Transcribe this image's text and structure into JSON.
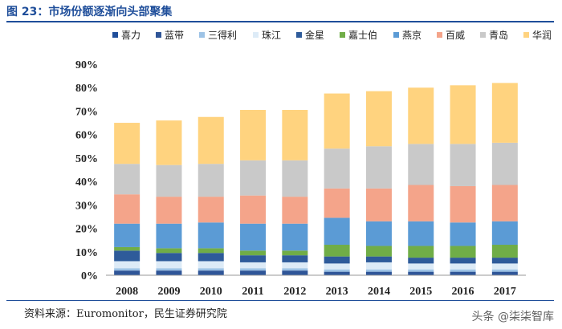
{
  "figure": {
    "title": "图 23：市场份额逐渐向头部聚集",
    "source": "资料来源：Euromonitor，民生证券研究院",
    "watermark": "头条 @柒柒智库"
  },
  "chart_data": {
    "type": "bar",
    "stacked": true,
    "title": "图 23：市场份额逐渐向头部聚集",
    "xlabel": "",
    "ylabel": "",
    "ylim": [
      0,
      90
    ],
    "yticks": [
      0,
      10,
      20,
      30,
      40,
      50,
      60,
      70,
      80,
      90
    ],
    "ytick_labels": [
      "0%",
      "10%",
      "20%",
      "30%",
      "40%",
      "50%",
      "60%",
      "70%",
      "80%",
      "90%"
    ],
    "grid": false,
    "legend_position": "top",
    "categories": [
      "2008",
      "2009",
      "2010",
      "2011",
      "2012",
      "2013",
      "2014",
      "2015",
      "2016",
      "2017"
    ],
    "series": [
      {
        "name": "喜力",
        "color": "#1f4e9a",
        "values": [
          0.5,
          0.5,
          0.5,
          0.5,
          0.5,
          0.5,
          0.5,
          0.5,
          0.5,
          0.5
        ]
      },
      {
        "name": "蓝带",
        "color": "#2f5597",
        "values": [
          1.5,
          1.5,
          1.5,
          1.5,
          1.5,
          1.0,
          1.0,
          1.0,
          1.0,
          1.0
        ]
      },
      {
        "name": "三得利",
        "color": "#9dc3e6",
        "values": [
          1.0,
          1.0,
          1.0,
          1.0,
          1.0,
          1.0,
          1.0,
          1.0,
          1.0,
          1.0
        ]
      },
      {
        "name": "珠江",
        "color": "#ddebf7",
        "values": [
          3.0,
          3.0,
          3.0,
          2.5,
          2.5,
          2.5,
          3.0,
          2.5,
          2.5,
          2.5
        ]
      },
      {
        "name": "金星",
        "color": "#2e5b9a",
        "values": [
          4.5,
          3.5,
          3.5,
          3.0,
          3.0,
          3.0,
          2.5,
          2.5,
          2.5,
          2.5
        ]
      },
      {
        "name": "嘉士伯",
        "color": "#70ad47",
        "values": [
          1.5,
          2.0,
          2.0,
          2.0,
          2.0,
          5.0,
          4.5,
          5.0,
          5.0,
          5.5
        ]
      },
      {
        "name": "燕京",
        "color": "#5b9bd5",
        "values": [
          10.0,
          10.5,
          11.0,
          11.5,
          11.5,
          11.5,
          10.5,
          10.5,
          10.0,
          10.0
        ]
      },
      {
        "name": "百威",
        "color": "#f4a48a",
        "values": [
          12.5,
          11.5,
          11.0,
          12.0,
          11.5,
          12.5,
          14.0,
          15.5,
          15.5,
          15.5
        ]
      },
      {
        "name": "青岛",
        "color": "#c9c9c9",
        "values": [
          13.0,
          13.5,
          14.0,
          15.0,
          15.5,
          17.0,
          18.0,
          17.5,
          18.0,
          18.0
        ]
      },
      {
        "name": "华润",
        "color": "#ffd37f",
        "values": [
          17.5,
          19.0,
          20.0,
          21.5,
          21.5,
          23.5,
          23.5,
          24.0,
          25.0,
          25.5
        ]
      }
    ]
  }
}
